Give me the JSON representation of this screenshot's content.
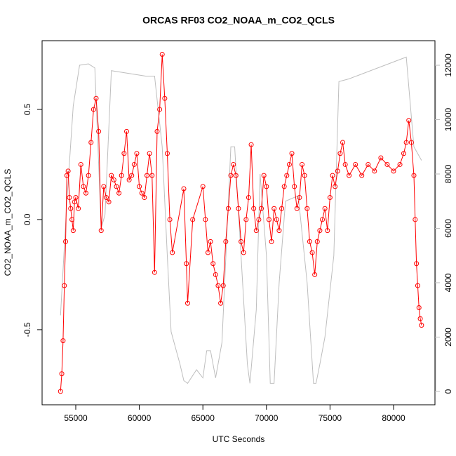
{
  "chart_data": {
    "type": "line",
    "title": "ORCAS RF03 CO2_NOAA_m_CO2_QCLS",
    "x_label": "UTC Seconds",
    "y_label": "CO2_NOAA_m_CO2_QCLS",
    "xlim": [
      52351,
      83256
    ],
    "ylim": [
      -0.841,
      0.812
    ],
    "y2lim": [
      -490,
      12903
    ],
    "xticks": [
      55000,
      60000,
      65000,
      70000,
      75000,
      80000
    ],
    "yticks": [
      -0.5,
      {
        "value": 0,
        "label": "0.0"
      },
      0.5
    ],
    "y2ticks": [
      0,
      2000,
      4000,
      6000,
      8000,
      10000,
      12000
    ],
    "series": [
      {
        "color": "#bebebe",
        "axis": "y2",
        "markers": false,
        "x": [
          53800,
          54300,
          54800,
          55300,
          56000,
          56500,
          57000,
          57300,
          57800,
          60500,
          61200,
          61800,
          62200,
          62500,
          63200,
          63500,
          63800,
          64500,
          65000,
          65300,
          65600,
          66000,
          66500,
          67200,
          67500,
          68500,
          68700,
          69200,
          69500,
          70000,
          70300,
          70600,
          71000,
          71500,
          72500,
          73200,
          73700,
          73900,
          74200,
          74600,
          75300,
          75700,
          76500,
          81000,
          81600,
          82200
        ],
        "values": [
          2800,
          7000,
          10500,
          12000,
          12050,
          11900,
          6000,
          6500,
          11800,
          11600,
          11600,
          9000,
          5000,
          2200,
          1000,
          400,
          300,
          800,
          500,
          1500,
          1500,
          500,
          1800,
          9000,
          9000,
          1000,
          300,
          3000,
          8000,
          5000,
          300,
          300,
          4000,
          7000,
          7200,
          4000,
          300,
          300,
          1000,
          2000,
          5000,
          11400,
          11500,
          12300,
          9000,
          8500
        ]
      },
      {
        "color": "#ff0000",
        "markers": true,
        "x": [
          53800,
          53900,
          54000,
          54100,
          54200,
          54300,
          54400,
          54500,
          54600,
          54700,
          54800,
          54900,
          55000,
          55200,
          55400,
          55600,
          55800,
          56000,
          56200,
          56400,
          56600,
          56800,
          57000,
          57200,
          57400,
          57600,
          57800,
          58000,
          58200,
          58400,
          58600,
          58800,
          59000,
          59200,
          59400,
          59600,
          59800,
          60000,
          60200,
          60400,
          60600,
          60800,
          61000,
          61200,
          61400,
          61600,
          61800,
          62000,
          62200,
          62400,
          62600,
          63500,
          63700,
          63800,
          64200,
          65000,
          65200,
          65400,
          65600,
          65800,
          66000,
          66200,
          66400,
          66600,
          66800,
          67000,
          67200,
          67400,
          67600,
          67800,
          68000,
          68200,
          68400,
          68600,
          68800,
          69000,
          69200,
          69400,
          69600,
          69800,
          70000,
          70200,
          70400,
          70600,
          70800,
          71000,
          71200,
          71400,
          71600,
          71800,
          72000,
          72200,
          72400,
          72600,
          72800,
          73000,
          73200,
          73400,
          73600,
          73800,
          74000,
          74200,
          74400,
          74600,
          74800,
          75000,
          75200,
          75400,
          75600,
          75800,
          76000,
          76200,
          76500,
          77000,
          77500,
          78000,
          78500,
          79000,
          79500,
          80000,
          80500,
          80800,
          81000,
          81200,
          81400,
          81600,
          81700,
          81800,
          81900,
          82000,
          82100,
          82200
        ],
        "values": [
          -0.78,
          -0.7,
          -0.55,
          -0.3,
          -0.1,
          0.2,
          0.22,
          0.1,
          0.05,
          0.0,
          -0.05,
          0.08,
          0.1,
          0.05,
          0.25,
          0.15,
          0.12,
          0.2,
          0.35,
          0.5,
          0.55,
          0.4,
          -0.05,
          0.15,
          0.1,
          0.08,
          0.2,
          0.18,
          0.15,
          0.12,
          0.2,
          0.3,
          0.4,
          0.18,
          0.2,
          0.25,
          0.3,
          0.15,
          0.12,
          0.1,
          0.2,
          0.3,
          0.2,
          -0.24,
          0.4,
          0.5,
          0.75,
          0.55,
          0.3,
          0.0,
          -0.15,
          0.14,
          -0.2,
          -0.38,
          0.0,
          0.15,
          0.0,
          -0.15,
          -0.1,
          -0.2,
          -0.25,
          -0.3,
          -0.38,
          -0.3,
          -0.1,
          0.05,
          0.2,
          0.25,
          0.2,
          0.05,
          -0.1,
          -0.15,
          0.0,
          0.1,
          0.34,
          0.05,
          -0.05,
          0.0,
          0.05,
          0.2,
          0.15,
          0.0,
          -0.1,
          0.05,
          0.0,
          -0.05,
          0.05,
          0.15,
          0.2,
          0.25,
          0.3,
          0.15,
          0.05,
          0.1,
          0.25,
          0.2,
          0.05,
          -0.1,
          -0.15,
          -0.25,
          -0.1,
          -0.05,
          0.0,
          0.05,
          -0.05,
          0.1,
          0.2,
          0.15,
          0.22,
          0.3,
          0.35,
          0.25,
          0.2,
          0.25,
          0.2,
          0.25,
          0.22,
          0.28,
          0.25,
          0.22,
          0.25,
          0.3,
          0.35,
          0.45,
          0.35,
          0.2,
          0.0,
          -0.2,
          -0.3,
          -0.4,
          -0.45,
          -0.48
        ]
      }
    ]
  }
}
